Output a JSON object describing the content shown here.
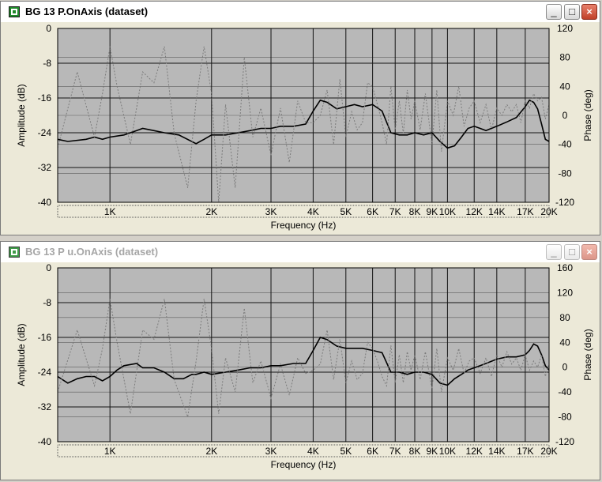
{
  "windows": [
    {
      "title": "BG 13 P.OnAxis (dataset)",
      "active": true,
      "controls": {
        "minimize": "_",
        "maximize": "□",
        "close": "×"
      }
    },
    {
      "title": "BG 13 P u.OnAxis (dataset)",
      "active": false,
      "controls": {
        "minimize": "_",
        "maximize": "□",
        "close": "×"
      }
    }
  ],
  "colors": {
    "plot_bg": "#b8b8b8",
    "grid": "#141414",
    "amplitude": "#000000",
    "phase": "#7c7c7c",
    "window_bg": "#ece9d8"
  },
  "chart_data": [
    {
      "type": "line",
      "xlabel": "Frequency (Hz)",
      "ylabel": "Amplitude (dB)",
      "y2label": "Phase (deg)",
      "xscale": "log",
      "xlim": [
        700,
        20000
      ],
      "ylim": [
        -40,
        0
      ],
      "y2lim": [
        -120,
        120
      ],
      "grid": true,
      "x_ticks": [
        1000,
        2000,
        3000,
        4000,
        5000,
        6000,
        7000,
        8000,
        9000,
        10000,
        12000,
        14000,
        17000,
        20000
      ],
      "x_tick_labels": [
        "1K",
        "2K",
        "3K",
        "4K",
        "5K",
        "6K",
        "7K",
        "8K",
        "9K",
        "10K",
        "12K",
        "14K",
        "17K",
        "20K"
      ],
      "y_ticks": [
        0,
        -8,
        -16,
        -24,
        -32,
        -40
      ],
      "y_tick_labels": [
        "0",
        "-8",
        "-16",
        "-24",
        "-32",
        "-40"
      ],
      "y2_ticks": [
        120,
        80,
        40,
        0,
        -40,
        -80,
        -120
      ],
      "y2_tick_labels": [
        "120",
        "80",
        "40",
        "0",
        "-40",
        "-80",
        "-120"
      ],
      "series": [
        {
          "axis": "left",
          "style": "solid",
          "x": [
            700,
            750,
            850,
            900,
            950,
            1000,
            1100,
            1200,
            1250,
            1350,
            1450,
            1600,
            1800,
            1900,
            2000,
            2200,
            2400,
            2600,
            2800,
            3000,
            3200,
            3500,
            3800,
            4000,
            4200,
            4400,
            4700,
            5000,
            5300,
            5600,
            6000,
            6400,
            6800,
            7200,
            7600,
            8000,
            8500,
            9000,
            9500,
            10000,
            10500,
            11000,
            11500,
            12000,
            12500,
            13000,
            14000,
            15000,
            16000,
            17000,
            17500,
            18000,
            18500,
            19000,
            19500,
            20000
          ],
          "y": [
            -25.5,
            -26,
            -25.5,
            -25,
            -25.5,
            -25,
            -24.5,
            -23.5,
            -23,
            -23.5,
            -24,
            -24.5,
            -26.5,
            -25.5,
            -24.5,
            -24.5,
            -24,
            -23.5,
            -23,
            -23,
            -22.5,
            -22.5,
            -22,
            -19,
            -16.5,
            -17,
            -18.5,
            -18,
            -17.5,
            -18,
            -17.5,
            -19,
            -24,
            -24.5,
            -24.5,
            -24,
            -24.5,
            -24,
            -26,
            -27.5,
            -27,
            -25,
            -23,
            -22.5,
            -23,
            -23.5,
            -22.5,
            -21.5,
            -20.5,
            -18,
            -16.5,
            -17,
            -18.5,
            -22,
            -25.5,
            -26
          ]
        },
        {
          "axis": "right",
          "style": "dotted",
          "x": [
            700,
            800,
            900,
            950,
            1000,
            1050,
            1150,
            1250,
            1350,
            1450,
            1550,
            1700,
            1800,
            1900,
            2000,
            2100,
            2200,
            2350,
            2500,
            2650,
            2800,
            3000,
            3200,
            3400,
            3600,
            3800,
            4000,
            4200,
            4400,
            4600,
            4800,
            5000,
            5200,
            5400,
            5600,
            5800,
            6000,
            6200,
            6400,
            6600,
            6800,
            7000,
            7200,
            7400,
            7600,
            7800,
            8000,
            8300,
            8600,
            9000,
            9300,
            9600,
            10000,
            10400,
            10800,
            11200,
            11600,
            12000,
            12500,
            13000,
            13500,
            14000,
            14500,
            15000,
            15500,
            16000,
            16500,
            17000,
            17500,
            18000,
            18500,
            19000,
            19500,
            20000
          ],
          "y": [
            -45,
            60,
            -30,
            30,
            95,
            40,
            -40,
            60,
            45,
            95,
            -25,
            -100,
            20,
            95,
            30,
            -130,
            15,
            -100,
            80,
            -30,
            10,
            -55,
            10,
            -65,
            20,
            -10,
            -10,
            0,
            35,
            -40,
            50,
            -30,
            5,
            -20,
            -10,
            45,
            40,
            15,
            -10,
            -40,
            40,
            -20,
            20,
            -25,
            35,
            -5,
            20,
            -20,
            30,
            -40,
            35,
            -50,
            20,
            0,
            40,
            -15,
            10,
            20,
            -10,
            15,
            -20,
            10,
            0,
            15,
            5,
            15,
            -10,
            20,
            10,
            30,
            20,
            25,
            -5,
            15
          ]
        }
      ]
    },
    {
      "type": "line",
      "xlabel": "Frequency (Hz)",
      "ylabel": "Amplitude (dB)",
      "y2label": "Phase (deg)",
      "xscale": "log",
      "xlim": [
        700,
        20000
      ],
      "ylim": [
        -40,
        0
      ],
      "y2lim": [
        -120,
        160
      ],
      "grid": true,
      "x_ticks": [
        1000,
        2000,
        3000,
        4000,
        5000,
        6000,
        7000,
        8000,
        9000,
        10000,
        12000,
        14000,
        17000,
        20000
      ],
      "x_tick_labels": [
        "1K",
        "2K",
        "3K",
        "4K",
        "5K",
        "6K",
        "7K",
        "8K",
        "9K",
        "10K",
        "12K",
        "14K",
        "17K",
        "20K"
      ],
      "y_ticks": [
        0,
        -8,
        -16,
        -24,
        -32,
        -40
      ],
      "y_tick_labels": [
        "0",
        "-8",
        "-16",
        "-24",
        "-32",
        "-40"
      ],
      "y2_ticks": [
        160,
        120,
        80,
        40,
        0,
        -40,
        -80,
        -120
      ],
      "y2_tick_labels": [
        "160",
        "120",
        "80",
        "40",
        "0",
        "-40",
        "-80",
        "-120"
      ],
      "series": [
        {
          "axis": "left",
          "style": "solid",
          "x": [
            700,
            750,
            800,
            850,
            900,
            950,
            1000,
            1050,
            1100,
            1200,
            1250,
            1350,
            1450,
            1550,
            1650,
            1750,
            1800,
            1900,
            2000,
            2200,
            2400,
            2600,
            2800,
            3000,
            3200,
            3500,
            3800,
            4000,
            4200,
            4400,
            4700,
            5000,
            5300,
            5600,
            6000,
            6400,
            6800,
            7200,
            7600,
            8000,
            8500,
            9000,
            9500,
            10000,
            10500,
            11000,
            11500,
            12000,
            12500,
            13000,
            14000,
            15000,
            16000,
            17000,
            17500,
            18000,
            18500,
            19000,
            19500,
            20000
          ],
          "y": [
            -25,
            -26.5,
            -25.5,
            -25,
            -25,
            -26,
            -25,
            -23.5,
            -22.5,
            -22,
            -23,
            -23,
            -24,
            -25.5,
            -25.5,
            -24.5,
            -24.5,
            -24,
            -24.5,
            -24,
            -23.5,
            -23,
            -23,
            -22.5,
            -22.5,
            -22,
            -22,
            -19,
            -16,
            -16.5,
            -18,
            -18.5,
            -18.5,
            -18.5,
            -19,
            -19.5,
            -24,
            -24,
            -24.5,
            -24,
            -24,
            -24.5,
            -26.5,
            -27,
            -25.5,
            -24.5,
            -23.5,
            -23,
            -22.5,
            -22,
            -21,
            -20.5,
            -20.5,
            -20,
            -19,
            -17.5,
            -18,
            -20,
            -22.5,
            -23.5
          ]
        },
        {
          "axis": "right",
          "style": "dotted",
          "x": [
            700,
            800,
            900,
            950,
            1000,
            1050,
            1150,
            1250,
            1350,
            1450,
            1550,
            1700,
            1800,
            1900,
            2000,
            2100,
            2200,
            2350,
            2500,
            2650,
            2800,
            3000,
            3200,
            3400,
            3600,
            3800,
            4000,
            4200,
            4400,
            4600,
            4800,
            5000,
            5200,
            5400,
            5600,
            5800,
            6000,
            6200,
            6400,
            6600,
            6800,
            7000,
            7200,
            7400,
            7600,
            7800,
            8000,
            8300,
            8600,
            9000,
            9300,
            9600,
            10000,
            10400,
            10800,
            11200,
            11600,
            12000,
            12500,
            13000,
            13500,
            14000,
            14500,
            15000,
            15500,
            16000,
            16500,
            17000,
            17500,
            18000,
            18500,
            19000,
            19500,
            20000
          ],
          "y": [
            -40,
            60,
            -30,
            30,
            110,
            40,
            -75,
            60,
            45,
            110,
            -20,
            -80,
            10,
            110,
            30,
            -75,
            15,
            -40,
            95,
            -25,
            10,
            -50,
            5,
            -45,
            15,
            -10,
            -5,
            5,
            60,
            -20,
            45,
            -25,
            10,
            -20,
            -10,
            40,
            30,
            10,
            -15,
            -30,
            35,
            -25,
            20,
            -25,
            25,
            -5,
            20,
            -20,
            25,
            -35,
            30,
            -40,
            15,
            -5,
            30,
            -10,
            10,
            15,
            -10,
            15,
            -15,
            20,
            0,
            25,
            5,
            15,
            -5,
            20,
            -5,
            10,
            0,
            20,
            -15,
            5
          ]
        }
      ]
    }
  ]
}
